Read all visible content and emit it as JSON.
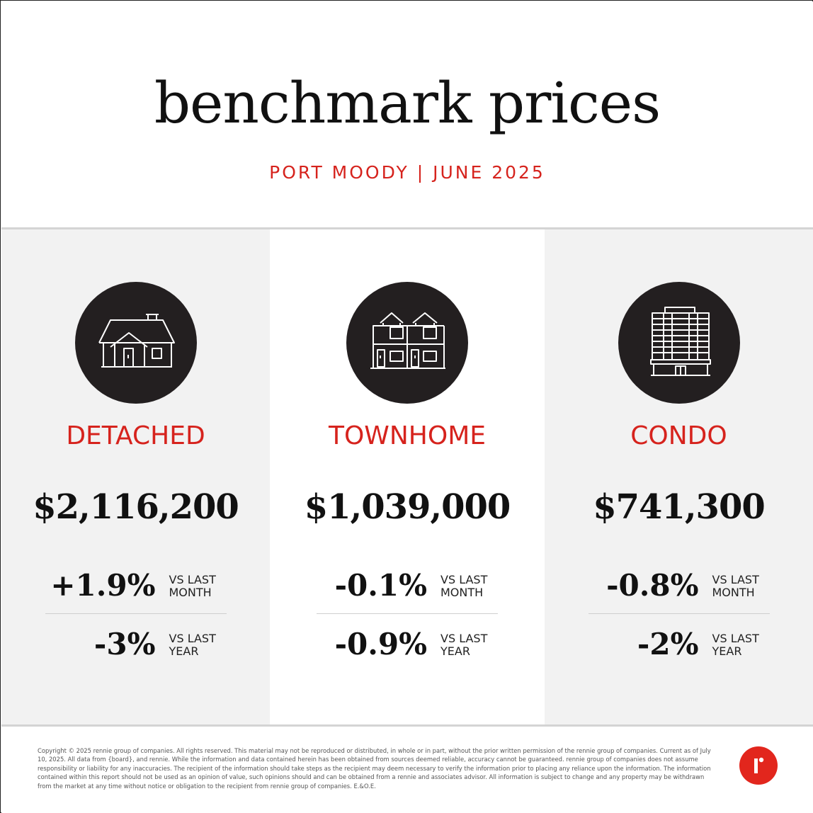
{
  "header": {
    "title": "benchmark prices",
    "subtitle": "PORT MOODY | JUNE 2025"
  },
  "colors": {
    "accent": "#d6231d",
    "icon_bg": "#231f20",
    "panel_gray": "#f2f2f2",
    "logo": "#e2261d"
  },
  "panels": [
    {
      "icon": "detached-house-icon",
      "type": "DETACHED",
      "price": "$2,116,200",
      "month_change": "+1.9%",
      "month_label": "VS LAST MONTH",
      "year_change": "-3%",
      "year_label": "VS LAST YEAR"
    },
    {
      "icon": "townhome-icon",
      "type": "TOWNHOME",
      "price": "$1,039,000",
      "month_change": "-0.1%",
      "month_label": "VS LAST MONTH",
      "year_change": "-0.9%",
      "year_label": "VS LAST YEAR"
    },
    {
      "icon": "condo-building-icon",
      "type": "CONDO",
      "price": "$741,300",
      "month_change": "-0.8%",
      "month_label": "VS LAST MONTH",
      "year_change": "-2%",
      "year_label": "VS LAST YEAR"
    }
  ],
  "footer": {
    "disclaimer": "Copyright © 2025 rennie group of companies. All rights reserved. This material may not be reproduced or distributed, in whole or in part, without the prior written permission of the rennie group of companies. Current as of July 10, 2025. All data from {board}, and rennie. While the information and data contained herein has been obtained from sources deemed reliable, accuracy cannot be guaranteed. rennie group of companies does not assume responsibility or liability for any inaccuracies. The recipient of the information should take steps as the recipient may deem necessary to verify the information prior to placing any reliance upon the information. The information contained within this report should not be used as an opinion of value, such opinions should and can be obtained from a rennie and associates advisor. All information is subject to change and any property may be withdrawn from the market at any time without notice or obligation to the recipient from rennie group of companies. E.&O.E.",
    "logo": "rennie-logo"
  }
}
